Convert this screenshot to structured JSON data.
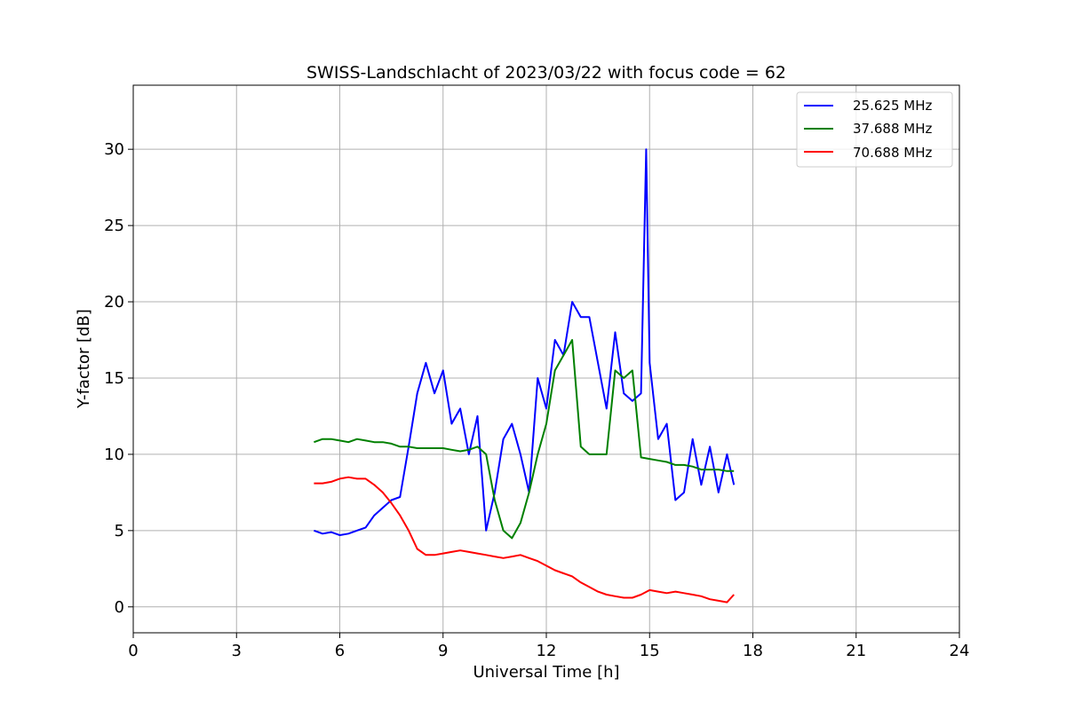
{
  "chart_data": {
    "type": "line",
    "title": "SWISS-Landschlacht of 2023/03/22 with focus code = 62",
    "xlabel": "Universal Time [h]",
    "ylabel": "Y-factor [dB]",
    "xlim": [
      0,
      24
    ],
    "ylim": [
      -1.7,
      34.2
    ],
    "xticks": [
      0,
      3,
      6,
      9,
      12,
      15,
      18,
      21,
      24
    ],
    "yticks": [
      0,
      5,
      10,
      15,
      20,
      25,
      30
    ],
    "grid": true,
    "legend_position": "top-right",
    "series": [
      {
        "name": "25.625 MHz",
        "color": "#0000ff",
        "x": [
          5.25,
          5.5,
          5.75,
          6.0,
          6.25,
          6.5,
          6.75,
          7.0,
          7.25,
          7.5,
          7.75,
          8.0,
          8.25,
          8.5,
          8.75,
          9.0,
          9.25,
          9.5,
          9.75,
          10.0,
          10.25,
          10.5,
          10.75,
          11.0,
          11.25,
          11.5,
          11.75,
          12.0,
          12.25,
          12.5,
          12.75,
          13.0,
          13.25,
          13.5,
          13.75,
          14.0,
          14.25,
          14.5,
          14.75,
          14.9,
          15.0,
          15.25,
          15.5,
          15.75,
          16.0,
          16.25,
          16.5,
          16.75,
          17.0,
          17.25,
          17.45
        ],
        "y": [
          5.0,
          4.8,
          4.9,
          4.7,
          4.8,
          5.0,
          5.2,
          6.0,
          6.5,
          7.0,
          7.2,
          10.5,
          14.0,
          16.0,
          14.0,
          15.5,
          12.0,
          13.0,
          10.0,
          12.5,
          5.0,
          7.5,
          11.0,
          12.0,
          10.0,
          7.5,
          15.0,
          13.0,
          17.5,
          16.5,
          20.0,
          19.0,
          19.0,
          16.0,
          13.0,
          18.0,
          14.0,
          13.5,
          14.0,
          30.0,
          16.0,
          11.0,
          12.0,
          7.0,
          7.5,
          11.0,
          8.0,
          10.5,
          7.5,
          10.0,
          8.0
        ]
      },
      {
        "name": "37.688 MHz",
        "color": "#008000",
        "x": [
          5.25,
          5.5,
          5.75,
          6.0,
          6.25,
          6.5,
          6.75,
          7.0,
          7.25,
          7.5,
          7.75,
          8.0,
          8.25,
          8.5,
          8.75,
          9.0,
          9.25,
          9.5,
          9.75,
          10.0,
          10.25,
          10.5,
          10.75,
          11.0,
          11.25,
          11.5,
          11.75,
          12.0,
          12.25,
          12.5,
          12.75,
          13.0,
          13.25,
          13.5,
          13.75,
          14.0,
          14.25,
          14.5,
          14.75,
          15.0,
          15.25,
          15.5,
          15.75,
          16.0,
          16.25,
          16.5,
          16.75,
          17.0,
          17.25,
          17.45
        ],
        "y": [
          10.8,
          11.0,
          11.0,
          10.9,
          10.8,
          11.0,
          10.9,
          10.8,
          10.8,
          10.7,
          10.5,
          10.5,
          10.4,
          10.4,
          10.4,
          10.4,
          10.3,
          10.2,
          10.3,
          10.5,
          10.0,
          7.0,
          5.0,
          4.5,
          5.5,
          7.5,
          10.0,
          12.0,
          15.5,
          16.5,
          17.5,
          10.5,
          10.0,
          10.0,
          10.0,
          15.5,
          15.0,
          15.5,
          9.8,
          9.7,
          9.6,
          9.5,
          9.3,
          9.3,
          9.2,
          9.0,
          9.0,
          9.0,
          8.9,
          8.9
        ]
      },
      {
        "name": "70.688 MHz",
        "color": "#ff0000",
        "x": [
          5.25,
          5.5,
          5.75,
          6.0,
          6.25,
          6.5,
          6.75,
          7.0,
          7.25,
          7.5,
          7.75,
          8.0,
          8.25,
          8.5,
          8.75,
          9.0,
          9.25,
          9.5,
          9.75,
          10.0,
          10.25,
          10.5,
          10.75,
          11.0,
          11.25,
          11.5,
          11.75,
          12.0,
          12.25,
          12.5,
          12.75,
          13.0,
          13.25,
          13.5,
          13.75,
          14.0,
          14.25,
          14.5,
          14.75,
          15.0,
          15.25,
          15.5,
          15.75,
          16.0,
          16.25,
          16.5,
          16.75,
          17.0,
          17.25,
          17.45
        ],
        "y": [
          8.1,
          8.1,
          8.2,
          8.4,
          8.5,
          8.4,
          8.4,
          8.0,
          7.5,
          6.8,
          6.0,
          5.0,
          3.8,
          3.4,
          3.4,
          3.5,
          3.6,
          3.7,
          3.6,
          3.5,
          3.4,
          3.3,
          3.2,
          3.3,
          3.4,
          3.2,
          3.0,
          2.7,
          2.4,
          2.2,
          2.0,
          1.6,
          1.3,
          1.0,
          0.8,
          0.7,
          0.6,
          0.6,
          0.8,
          1.1,
          1.0,
          0.9,
          1.0,
          0.9,
          0.8,
          0.7,
          0.5,
          0.4,
          0.3,
          0.8
        ]
      }
    ]
  }
}
